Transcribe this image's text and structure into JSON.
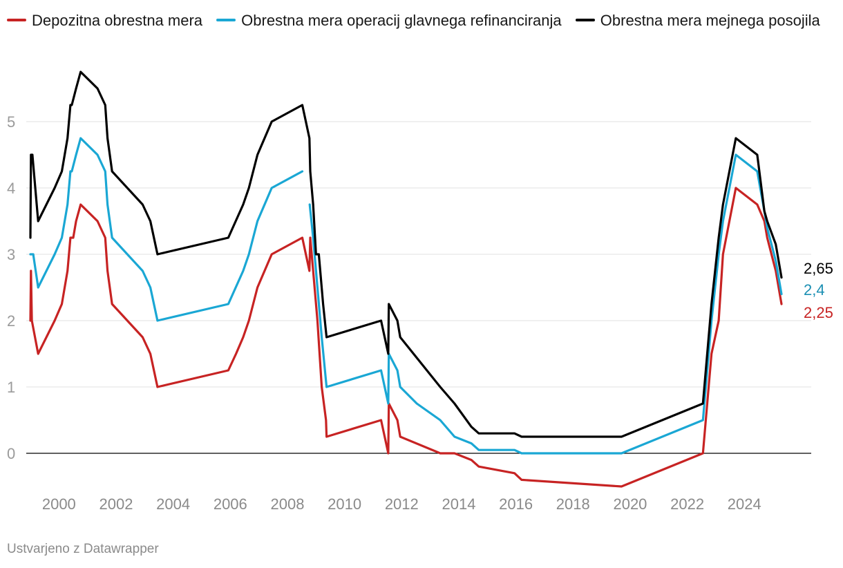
{
  "chart_data": {
    "type": "line",
    "title": "",
    "xlabel": "",
    "ylabel": "",
    "xlim": [
      1998.9,
      2025.55
    ],
    "ylim": [
      -0.6,
      5.9
    ],
    "yticks": [
      0,
      1,
      2,
      3,
      4,
      5
    ],
    "xticks": [
      2000,
      2002,
      2004,
      2006,
      2008,
      2010,
      2012,
      2014,
      2016,
      2018,
      2020,
      2022,
      2024
    ],
    "ytick_labels": [
      "0",
      "1",
      "2",
      "3",
      "4",
      "5"
    ],
    "xtick_labels": [
      "2000",
      "2002",
      "2004",
      "2006",
      "2008",
      "2010",
      "2012",
      "2014",
      "2016",
      "2018",
      "2020",
      "2022",
      "2024"
    ],
    "series": [
      {
        "name": "Depozitna obrestna mera",
        "color": "#c72323",
        "label_color": "#c72323",
        "end_label": "2,25",
        "points": [
          [
            1999.0,
            2.0
          ],
          [
            1999.02,
            2.75
          ],
          [
            1999.05,
            2.0
          ],
          [
            1999.27,
            1.5
          ],
          [
            1999.85,
            2.0
          ],
          [
            2000.1,
            2.25
          ],
          [
            2000.3,
            2.75
          ],
          [
            2000.4,
            3.25
          ],
          [
            2000.5,
            3.25
          ],
          [
            2000.6,
            3.5
          ],
          [
            2000.76,
            3.75
          ],
          [
            2001.35,
            3.5
          ],
          [
            2001.62,
            3.25
          ],
          [
            2001.7,
            2.75
          ],
          [
            2001.86,
            2.25
          ],
          [
            2002.93,
            1.75
          ],
          [
            2003.2,
            1.5
          ],
          [
            2003.45,
            1.0
          ],
          [
            2005.93,
            1.25
          ],
          [
            2006.2,
            1.5
          ],
          [
            2006.45,
            1.75
          ],
          [
            2006.65,
            2.0
          ],
          [
            2006.95,
            2.5
          ],
          [
            2007.45,
            3.0
          ],
          [
            2008.52,
            3.25
          ],
          [
            2008.77,
            2.75
          ],
          [
            2008.8,
            3.25
          ],
          [
            2008.9,
            2.75
          ],
          [
            2009.05,
            2.0
          ],
          [
            2009.2,
            1.0
          ],
          [
            2009.35,
            0.5
          ],
          [
            2009.37,
            0.25
          ],
          [
            2011.28,
            0.5
          ],
          [
            2011.53,
            0.0
          ],
          [
            2011.55,
            0.75
          ],
          [
            2011.85,
            0.5
          ],
          [
            2011.95,
            0.25
          ],
          [
            2013.35,
            0.0
          ],
          [
            2013.85,
            0.0
          ],
          [
            2014.44,
            -0.1
          ],
          [
            2014.7,
            -0.2
          ],
          [
            2015.95,
            -0.3
          ],
          [
            2016.2,
            -0.4
          ],
          [
            2019.7,
            -0.5
          ],
          [
            2022.55,
            0.0
          ],
          [
            2022.7,
            0.75
          ],
          [
            2022.85,
            1.5
          ],
          [
            2023.1,
            2.0
          ],
          [
            2023.25,
            3.0
          ],
          [
            2023.7,
            4.0
          ],
          [
            2024.45,
            3.75
          ],
          [
            2024.7,
            3.5
          ],
          [
            2024.8,
            3.25
          ],
          [
            2025.1,
            2.75
          ],
          [
            2025.3,
            2.25
          ]
        ]
      },
      {
        "name": "Obrestna mera operacij glavnega refinanciranja",
        "color": "#1aa7d4",
        "label_color": "#1b8fb3",
        "end_label": "2,4",
        "segments_break_after_index": 22,
        "points": [
          [
            1999.0,
            3.0
          ],
          [
            1999.1,
            3.0
          ],
          [
            1999.27,
            2.5
          ],
          [
            1999.85,
            3.0
          ],
          [
            2000.1,
            3.25
          ],
          [
            2000.3,
            3.75
          ],
          [
            2000.4,
            4.25
          ],
          [
            2000.45,
            4.25
          ],
          [
            2000.6,
            4.5
          ],
          [
            2000.76,
            4.75
          ],
          [
            2001.35,
            4.5
          ],
          [
            2001.62,
            4.25
          ],
          [
            2001.7,
            3.75
          ],
          [
            2001.86,
            3.25
          ],
          [
            2002.93,
            2.75
          ],
          [
            2003.2,
            2.5
          ],
          [
            2003.45,
            2.0
          ],
          [
            2005.93,
            2.25
          ],
          [
            2006.45,
            2.75
          ],
          [
            2006.65,
            3.0
          ],
          [
            2006.95,
            3.5
          ],
          [
            2007.45,
            4.0
          ],
          [
            2008.52,
            4.25
          ],
          [
            2008.78,
            3.75
          ],
          [
            2008.9,
            3.25
          ],
          [
            2009.05,
            2.5
          ],
          [
            2009.2,
            1.75
          ],
          [
            2009.37,
            1.0
          ],
          [
            2011.28,
            1.25
          ],
          [
            2011.53,
            0.75
          ],
          [
            2011.55,
            1.5
          ],
          [
            2011.85,
            1.25
          ],
          [
            2011.95,
            1.0
          ],
          [
            2012.53,
            0.75
          ],
          [
            2013.35,
            0.5
          ],
          [
            2013.85,
            0.25
          ],
          [
            2014.44,
            0.15
          ],
          [
            2014.7,
            0.05
          ],
          [
            2015.95,
            0.05
          ],
          [
            2016.2,
            0.0
          ],
          [
            2019.7,
            0.0
          ],
          [
            2022.55,
            0.5
          ],
          [
            2022.7,
            1.25
          ],
          [
            2022.85,
            2.0
          ],
          [
            2023.1,
            3.0
          ],
          [
            2023.25,
            3.5
          ],
          [
            2023.7,
            4.5
          ],
          [
            2024.45,
            4.25
          ],
          [
            2024.7,
            3.65
          ],
          [
            2024.8,
            3.4
          ],
          [
            2025.1,
            2.9
          ],
          [
            2025.3,
            2.4
          ]
        ]
      },
      {
        "name": "Obrestna mera mejnega posojila",
        "color": "#000000",
        "label_color": "#000000",
        "end_label": "2,65",
        "points": [
          [
            1999.0,
            3.25
          ],
          [
            1999.02,
            4.5
          ],
          [
            1999.07,
            4.5
          ],
          [
            1999.27,
            3.5
          ],
          [
            1999.85,
            4.0
          ],
          [
            2000.1,
            4.25
          ],
          [
            2000.3,
            4.75
          ],
          [
            2000.4,
            5.25
          ],
          [
            2000.45,
            5.25
          ],
          [
            2000.6,
            5.5
          ],
          [
            2000.76,
            5.75
          ],
          [
            2001.35,
            5.5
          ],
          [
            2001.62,
            5.25
          ],
          [
            2001.7,
            4.75
          ],
          [
            2001.86,
            4.25
          ],
          [
            2002.93,
            3.75
          ],
          [
            2003.2,
            3.5
          ],
          [
            2003.45,
            3.0
          ],
          [
            2005.93,
            3.25
          ],
          [
            2006.45,
            3.75
          ],
          [
            2006.65,
            4.0
          ],
          [
            2006.95,
            4.5
          ],
          [
            2007.45,
            5.0
          ],
          [
            2008.52,
            5.25
          ],
          [
            2008.77,
            4.75
          ],
          [
            2008.8,
            4.25
          ],
          [
            2008.9,
            3.75
          ],
          [
            2009.0,
            3.0
          ],
          [
            2009.1,
            3.0
          ],
          [
            2009.25,
            2.25
          ],
          [
            2009.37,
            1.75
          ],
          [
            2011.28,
            2.0
          ],
          [
            2011.53,
            1.5
          ],
          [
            2011.55,
            2.25
          ],
          [
            2011.85,
            2.0
          ],
          [
            2011.95,
            1.75
          ],
          [
            2013.35,
            1.0
          ],
          [
            2013.85,
            0.75
          ],
          [
            2014.44,
            0.4
          ],
          [
            2014.7,
            0.3
          ],
          [
            2015.95,
            0.3
          ],
          [
            2016.2,
            0.25
          ],
          [
            2019.7,
            0.25
          ],
          [
            2022.55,
            0.75
          ],
          [
            2022.7,
            1.5
          ],
          [
            2022.85,
            2.25
          ],
          [
            2023.1,
            3.25
          ],
          [
            2023.25,
            3.75
          ],
          [
            2023.7,
            4.75
          ],
          [
            2024.45,
            4.5
          ],
          [
            2024.7,
            3.65
          ],
          [
            2024.8,
            3.5
          ],
          [
            2025.1,
            3.15
          ],
          [
            2025.3,
            2.65
          ]
        ]
      }
    ]
  },
  "footer": {
    "credit": "Ustvarjeno z Datawrapper"
  }
}
